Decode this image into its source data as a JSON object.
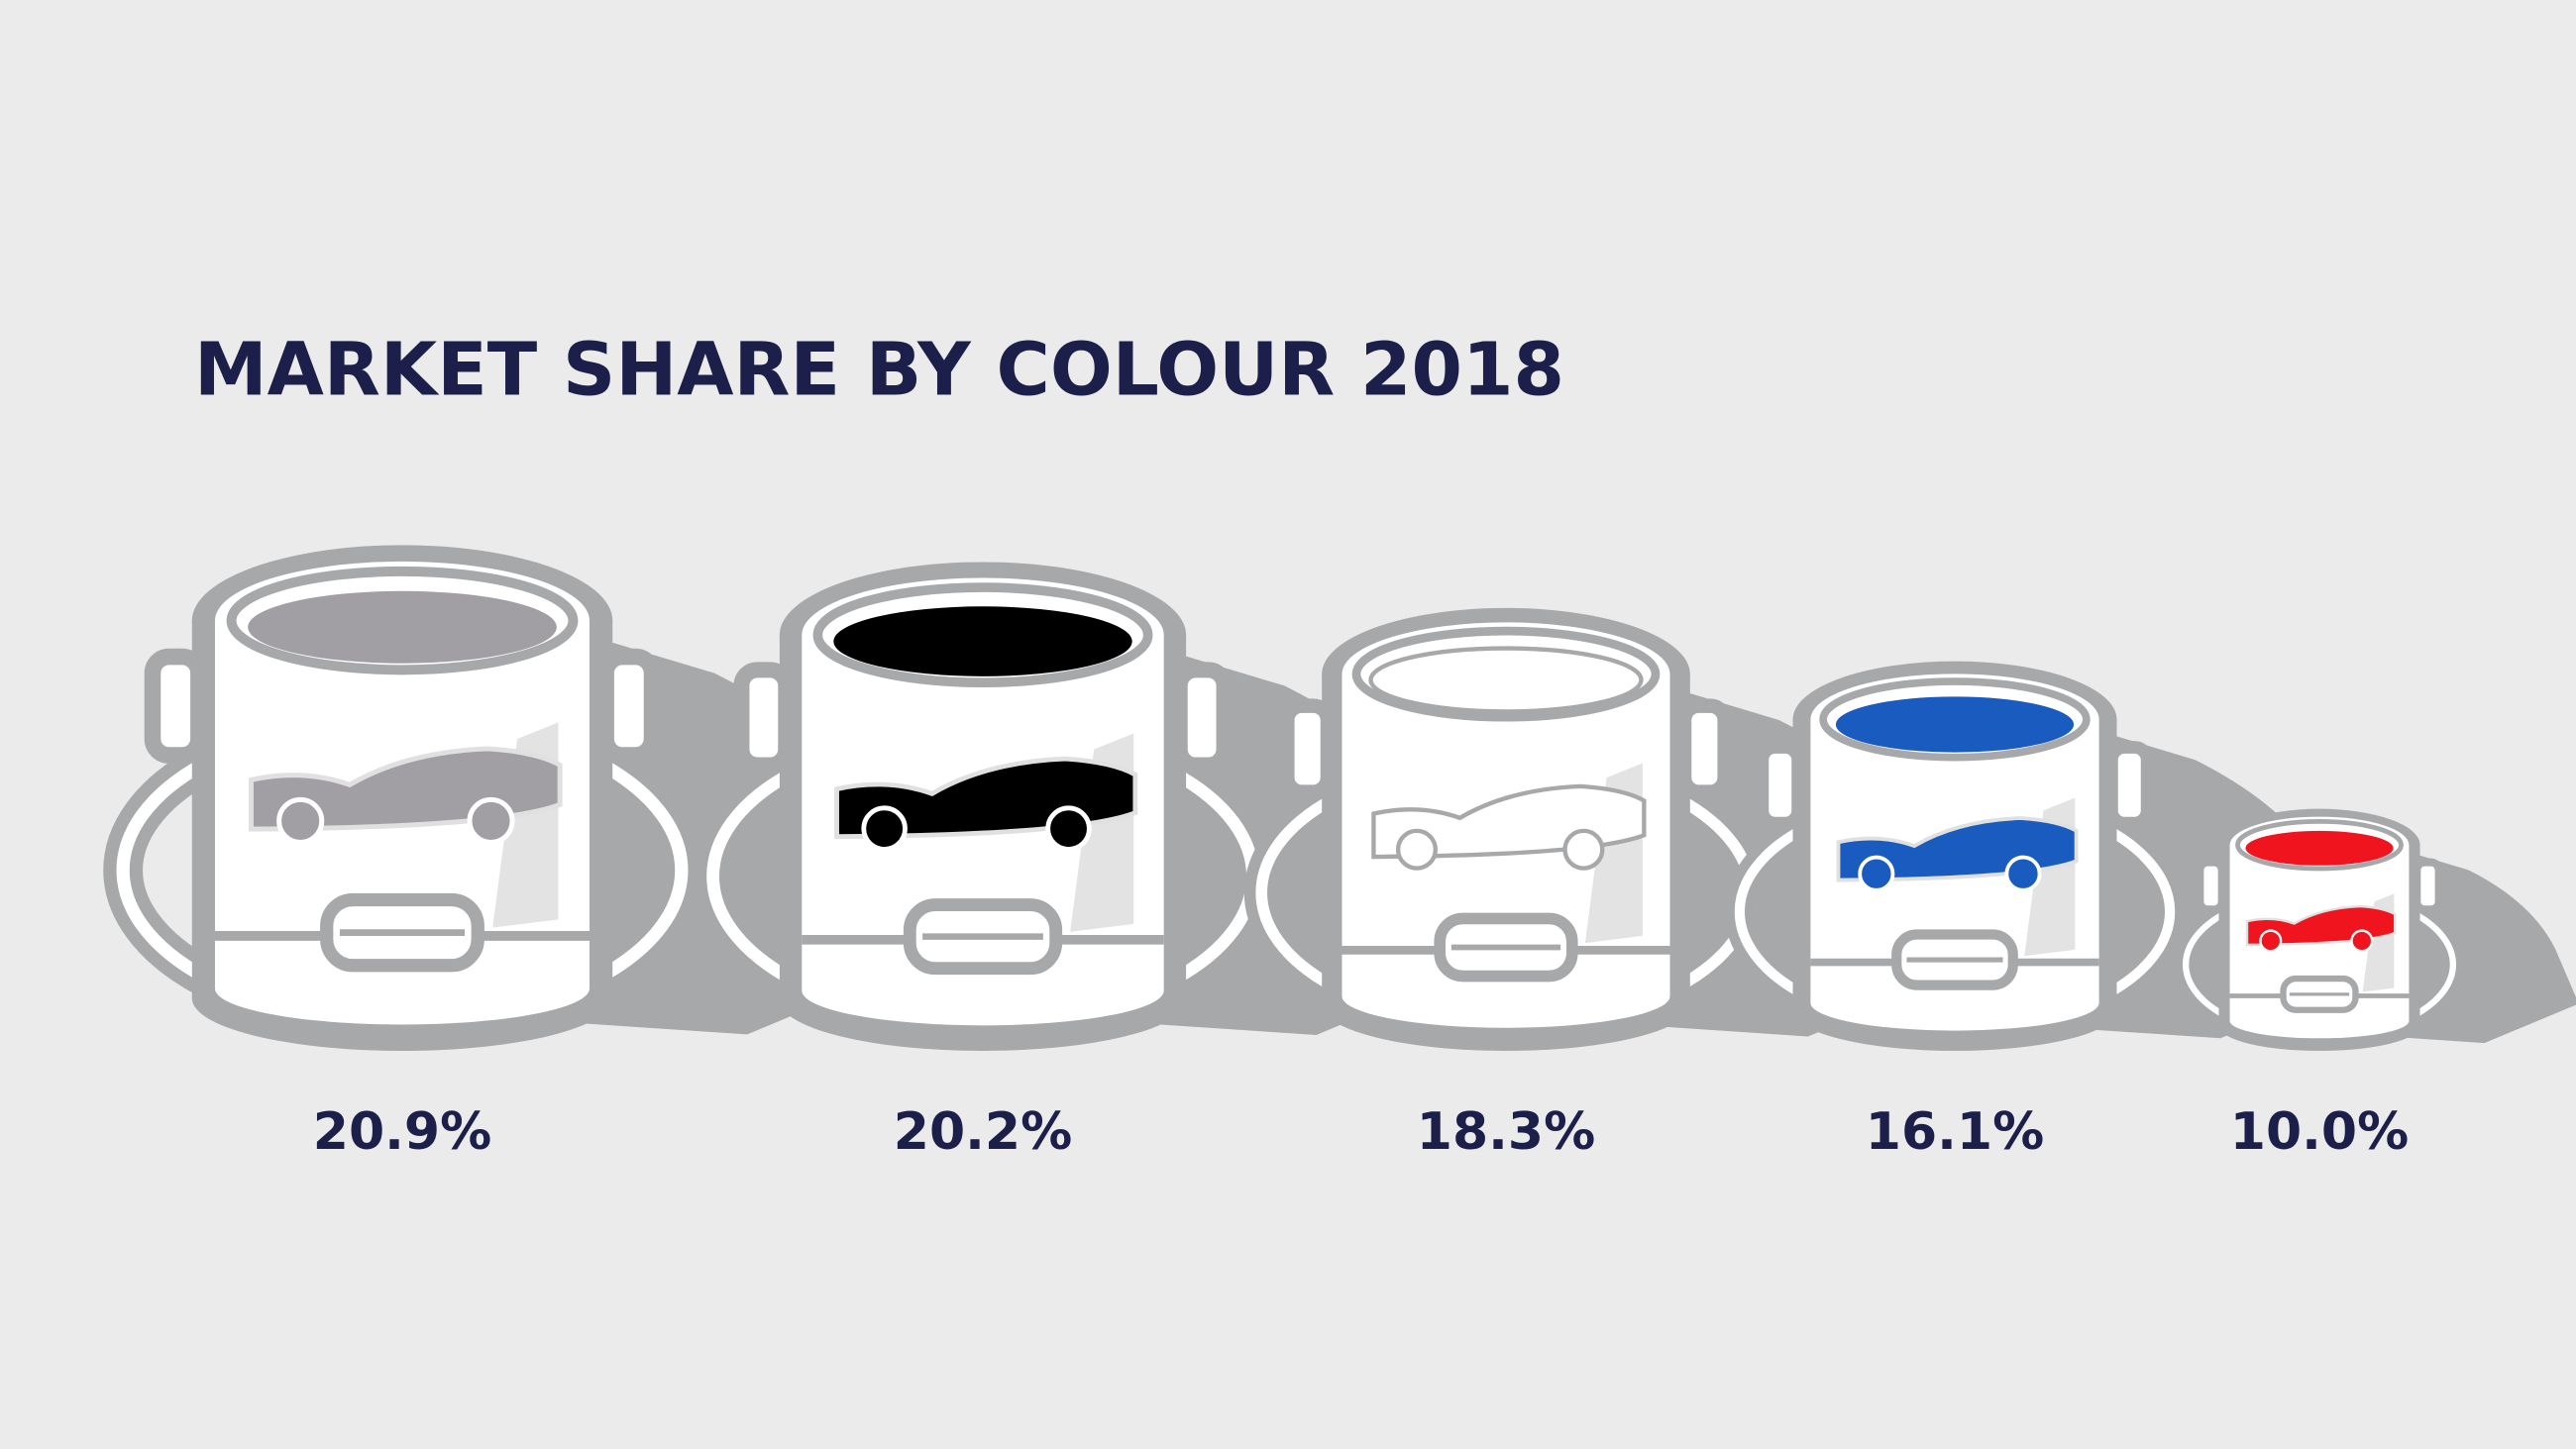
{
  "chart_data": {
    "type": "pictograph",
    "title": "MARKET SHARE BY COLOUR 2018",
    "values": [
      20.9,
      20.2,
      18.3,
      16.1,
      10.0
    ],
    "value_labels": [
      "20.9%",
      "20.2%",
      "18.3%",
      "16.1%",
      "10.0%"
    ],
    "colors": [
      "#a19fa4",
      "#000000",
      "#ffffff",
      "#1a5bbf",
      "#f0141e"
    ]
  }
}
